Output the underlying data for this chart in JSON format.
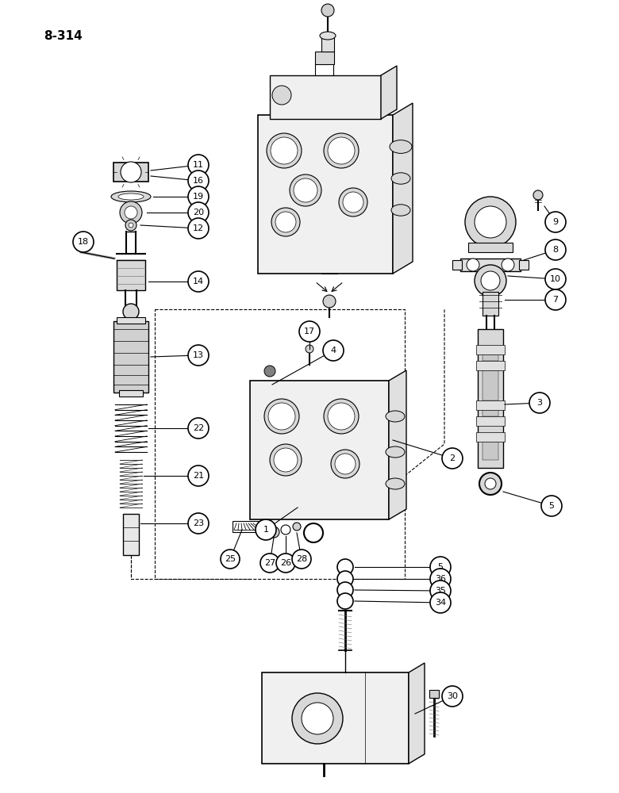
{
  "page_label": "8-314",
  "bg": "#ffffff",
  "lc": "#000000",
  "fig_w": 7.8,
  "fig_h": 10.0,
  "dpi": 100
}
